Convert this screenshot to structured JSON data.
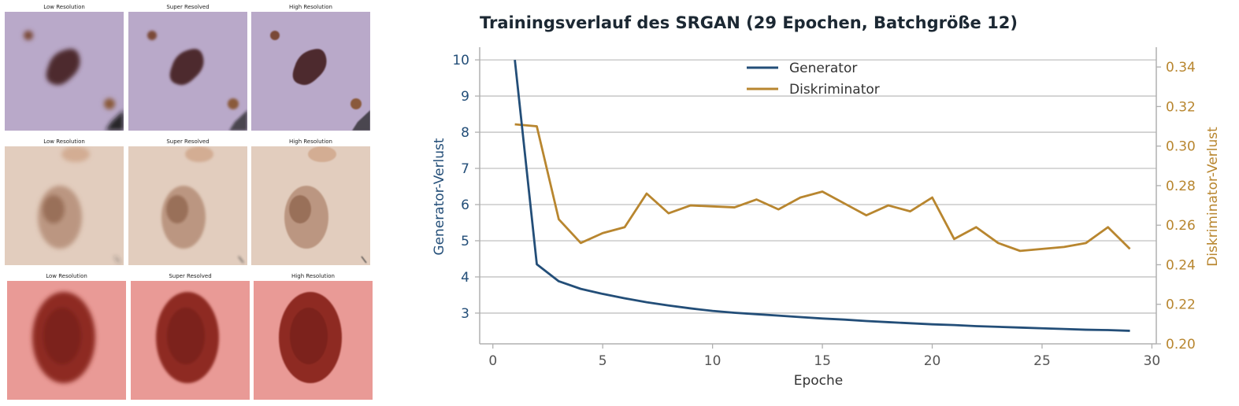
{
  "image_grid": {
    "rows": [
      {
        "captions": [
          "Low Resolution",
          "Super Resolved",
          "High Resolution"
        ],
        "skin_color": "#b9a9c9",
        "lesion_color": "#4e2a2e"
      },
      {
        "captions": [
          "Low Resolution",
          "Super Resolved",
          "High Resolution"
        ],
        "skin_color": "#e2cdbe",
        "lesion_color": "#9a6a4e"
      },
      {
        "captions": [
          "Low Resolution",
          "Super Resolved",
          "High Resolution"
        ],
        "skin_color": "#e99a96",
        "lesion_color": "#8e2a22"
      }
    ]
  },
  "chart_data": {
    "type": "line",
    "title": "Trainingsverlauf des SRGAN (29 Epochen, Batchgröße 12)",
    "xlabel": "Epoche",
    "ylabel_left": "Generator-Verlust",
    "ylabel_right": "Diskriminator-Verlust",
    "xlim": [
      -0.6,
      30.2
    ],
    "ylim_left": [
      2.15,
      10.35
    ],
    "ylim_right": [
      0.2,
      0.35
    ],
    "x_ticks": [
      0,
      5,
      10,
      15,
      20,
      25,
      30
    ],
    "y_ticks_left": [
      3,
      4,
      5,
      6,
      7,
      8,
      9,
      10
    ],
    "y_ticks_right": [
      "0.20",
      "0.22",
      "0.24",
      "0.26",
      "0.28",
      "0.30",
      "0.32",
      "0.34"
    ],
    "grid": "horizontal",
    "legend_position": "top-center",
    "colors": {
      "generator": "#234e78",
      "discriminator": "#b8862f"
    },
    "x": [
      1,
      2,
      3,
      4,
      5,
      6,
      7,
      8,
      9,
      10,
      11,
      12,
      13,
      14,
      15,
      16,
      17,
      18,
      19,
      20,
      21,
      22,
      23,
      24,
      25,
      26,
      27,
      28,
      29
    ],
    "series": [
      {
        "name": "Generator",
        "axis": "left",
        "values": [
          10.0,
          4.35,
          3.88,
          3.67,
          3.53,
          3.41,
          3.3,
          3.21,
          3.13,
          3.06,
          3.01,
          2.97,
          2.93,
          2.89,
          2.85,
          2.82,
          2.78,
          2.75,
          2.72,
          2.69,
          2.67,
          2.64,
          2.62,
          2.6,
          2.58,
          2.56,
          2.54,
          2.53,
          2.51
        ]
      },
      {
        "name": "Diskriminator",
        "axis": "right",
        "values": [
          0.311,
          0.31,
          0.263,
          0.251,
          0.256,
          0.259,
          0.276,
          0.266,
          0.27,
          0.2695,
          0.269,
          0.273,
          0.268,
          0.274,
          0.277,
          0.271,
          0.265,
          0.27,
          0.267,
          0.274,
          0.253,
          0.259,
          0.251,
          0.247,
          0.248,
          0.249,
          0.251,
          0.259,
          0.248
        ]
      }
    ]
  }
}
